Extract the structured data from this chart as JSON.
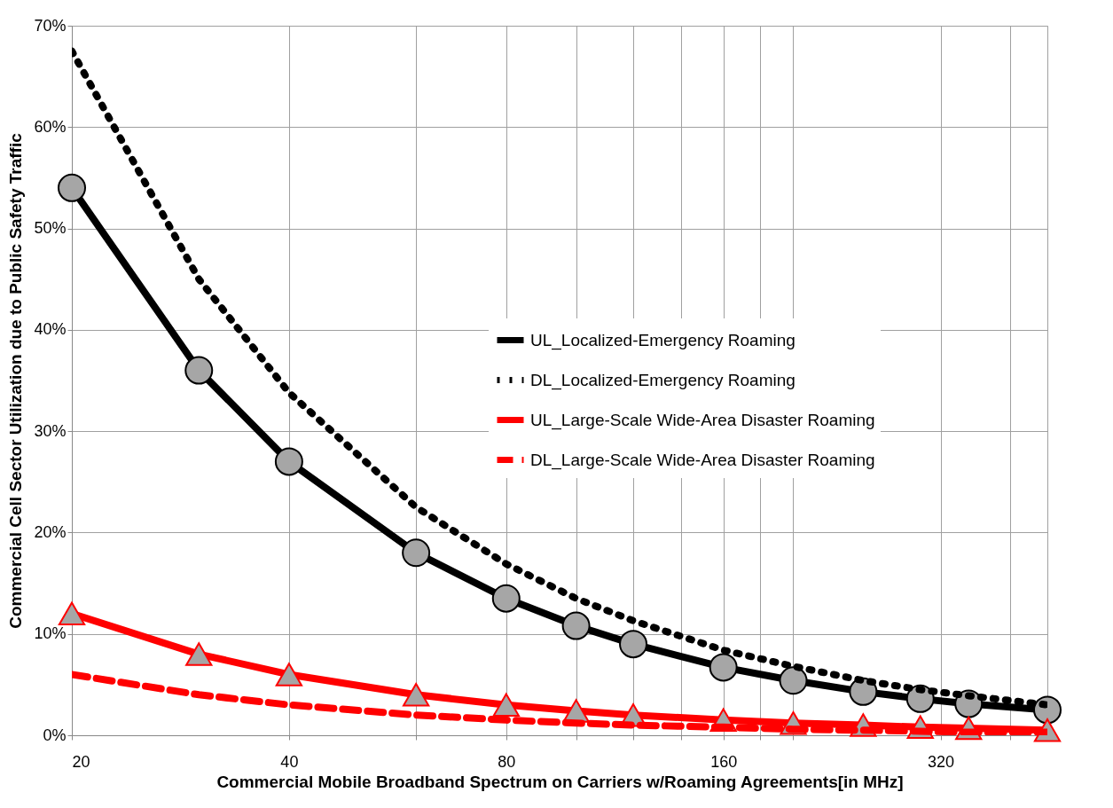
{
  "chart_data": {
    "type": "line",
    "xlabel": "Commercial Mobile Broadband Spectrum on Carriers w/Roaming Agreements[in MHz]",
    "ylabel": "Commercial Cell Sector Utilization due to Public Safety Traffic",
    "x": [
      20,
      30,
      40,
      60,
      80,
      100,
      120,
      160,
      200,
      250,
      300,
      350,
      450
    ],
    "log": "x",
    "xlim": [
      20,
      450
    ],
    "xticks": [
      20,
      40,
      {
        "value": 60,
        "label": null
      },
      80,
      {
        "value": 100,
        "label": null
      },
      {
        "value": 120,
        "label": null
      },
      {
        "value": 140,
        "label": null
      },
      160,
      {
        "value": 180,
        "label": null
      },
      {
        "value": 200,
        "label": null
      },
      320,
      {
        "value": 400,
        "label": null
      }
    ],
    "ylim": [
      0,
      70
    ],
    "yticks": [
      {
        "value": 0,
        "label": "0%"
      },
      {
        "value": 10,
        "label": "10%"
      },
      {
        "value": 20,
        "label": "20%"
      },
      {
        "value": 30,
        "label": "30%"
      },
      {
        "value": 40,
        "label": "40%"
      },
      {
        "value": 50,
        "label": "50%"
      },
      {
        "value": 60,
        "label": "60%"
      },
      {
        "value": 70,
        "label": "70%"
      }
    ],
    "grid": true,
    "legend": "right",
    "series": [
      {
        "name": "UL_Localized-Emergency Roaming",
        "color": "#000000",
        "marker": "circle",
        "line_style": "solid",
        "values": [
          54,
          36,
          27,
          18,
          13.5,
          10.8,
          9,
          6.7,
          5.4,
          4.3,
          3.6,
          3.1,
          2.5
        ]
      },
      {
        "name": "DL_Localized-Emergency Roaming",
        "color": "#000000",
        "line_style": "dotted",
        "values": [
          67.5,
          45,
          33.8,
          22.5,
          16.9,
          13.5,
          11.3,
          8.4,
          6.8,
          5.4,
          4.5,
          3.9,
          3.0
        ]
      },
      {
        "name": "UL_Large-Scale Wide-Area Disaster Roaming",
        "color": "#ff0000",
        "marker": "triangle",
        "line_style": "solid",
        "values": [
          12,
          8,
          6,
          4,
          3,
          2.4,
          2.0,
          1.5,
          1.2,
          1.0,
          0.8,
          0.7,
          0.5
        ]
      },
      {
        "name": "DL_Large-Scale Wide-Area Disaster Roaming",
        "color": "#ff0000",
        "line_style": "dashed",
        "values": [
          6,
          4,
          3,
          2,
          1.5,
          1.2,
          1.0,
          0.8,
          0.6,
          0.5,
          0.4,
          0.3,
          0.3
        ]
      }
    ]
  }
}
